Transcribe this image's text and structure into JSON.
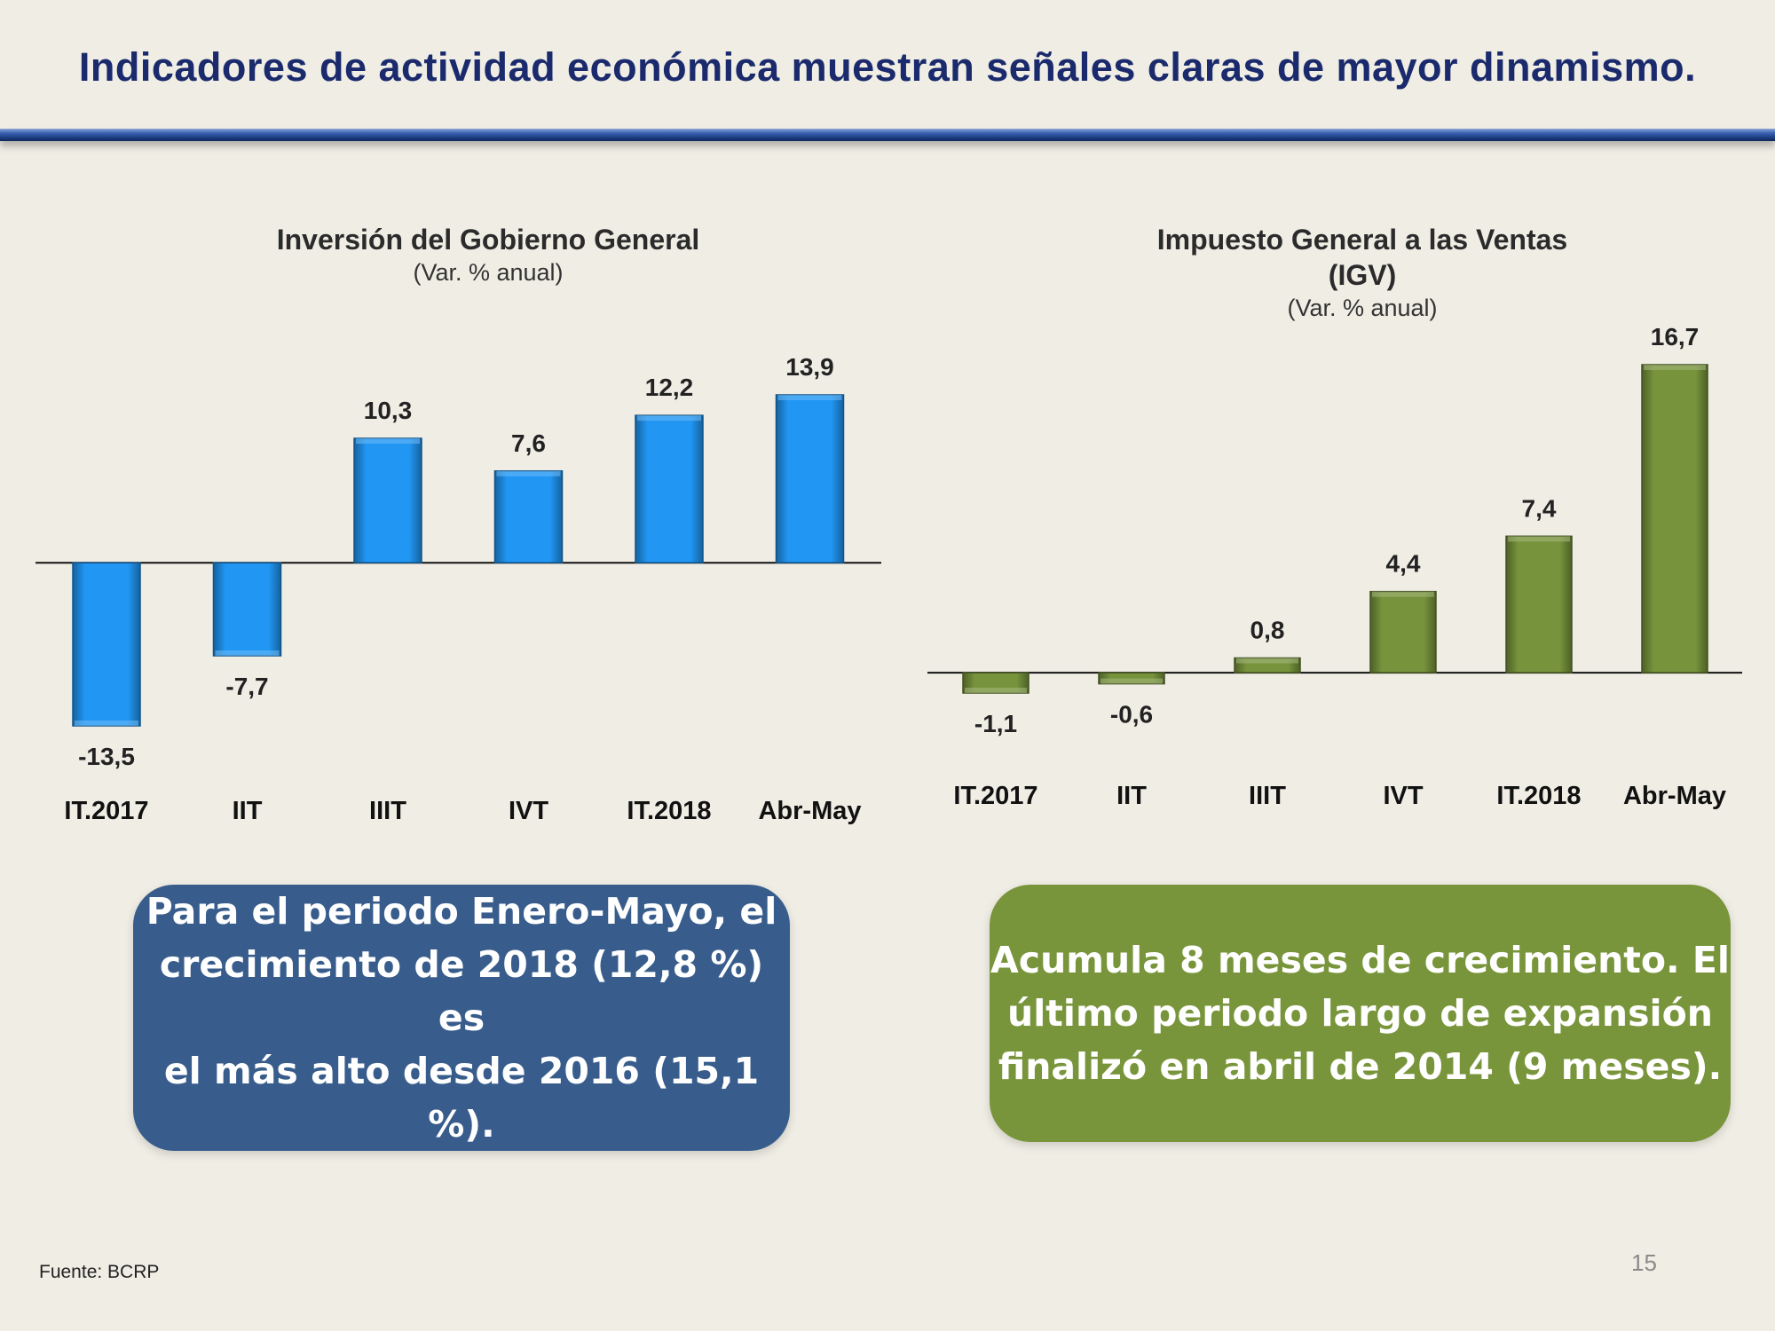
{
  "slide": {
    "title": "Indicadores de actividad económica muestran señales claras de mayor dinamismo.",
    "source": "Fuente: BCRP",
    "page_number": "15"
  },
  "charts": {
    "left": {
      "title": "Inversión del Gobierno General",
      "subtitle": "(Var. % anual)"
    },
    "right": {
      "title_line1": "Impuesto General a las Ventas",
      "title_line2": "(IGV)",
      "subtitle": "(Var. % anual)"
    }
  },
  "callouts": {
    "left": {
      "line1": "Para el periodo Enero-Mayo, el",
      "line2": "crecimiento de 2018 (12,8 %) es",
      "line3": "el más alto desde 2016 (15,1 %)."
    },
    "right": {
      "line1": "Acumula 8 meses de crecimiento. El",
      "line2": "último periodo largo de expansión",
      "line3": "finalizó en abril de 2014 (9 meses)."
    }
  },
  "colors": {
    "blue_bar": "#2196f3",
    "green_bar": "#77933c"
  },
  "chart_data": [
    {
      "type": "bar",
      "title": "Inversión del Gobierno General",
      "subtitle": "(Var. % anual)",
      "categories": [
        "IT.2017",
        "IIT",
        "IIIT",
        "IVT",
        "IT.2018",
        "Abr-May"
      ],
      "values": [
        -13.5,
        -7.7,
        10.3,
        7.6,
        12.2,
        13.9
      ],
      "labels": [
        "-13,5",
        "-7,7",
        "10,3",
        "7,6",
        "12,2",
        "13,9"
      ],
      "ylim": [
        -13.5,
        13.9
      ]
    },
    {
      "type": "bar",
      "title": "Impuesto General a las Ventas (IGV)",
      "subtitle": "(Var. % anual)",
      "categories": [
        "IT.2017",
        "IIT",
        "IIIT",
        "IVT",
        "IT.2018",
        "Abr-May"
      ],
      "values": [
        -1.1,
        -0.6,
        0.8,
        4.4,
        7.4,
        16.7
      ],
      "labels": [
        "-1,1",
        "-0,6",
        "0,8",
        "4,4",
        "7,4",
        "16,7"
      ],
      "ylim": [
        -1.1,
        16.7
      ]
    }
  ]
}
